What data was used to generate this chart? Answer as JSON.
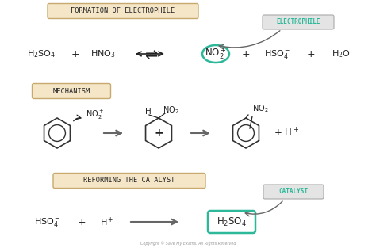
{
  "bg_color": "#ffffff",
  "title_box_color": "#f5e6c8",
  "title_box_edge": "#c8a96e",
  "teal_color": "#2db89a",
  "arrow_color": "#666666",
  "text_color": "#222222",
  "section1_title": "FORMATION OF ELECTROPHILE",
  "section2_title": "MECHANISM",
  "section3_title": "REFORMING THE CATALYST",
  "electrophile_label": "ELECTROPHILE",
  "catalyst_label": "CATALYST",
  "copyright": "Copyright © Save My Exams. All Rights Reserved"
}
